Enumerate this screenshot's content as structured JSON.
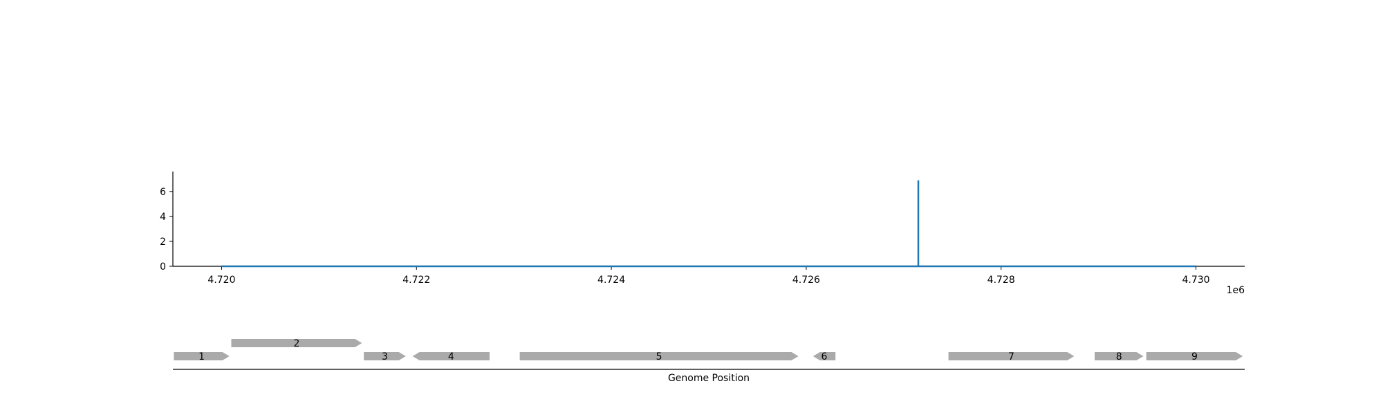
{
  "chart_data": [
    {
      "type": "line",
      "xlabel": "",
      "ylabel": "",
      "x_offset_label": "1e6",
      "xlim": [
        4719500,
        4730500
      ],
      "ylim": [
        0,
        7.6
      ],
      "x_ticks": [
        4720000,
        4722000,
        4724000,
        4726000,
        4728000,
        4730000
      ],
      "x_tick_labels": [
        "4.720",
        "4.722",
        "4.724",
        "4.726",
        "4.728",
        "4.730"
      ],
      "y_ticks": [
        0,
        2,
        4,
        6
      ],
      "y_tick_labels": [
        "0",
        "2",
        "4",
        "6"
      ],
      "grid": false,
      "color": "#1f77b4",
      "series": [
        {
          "x": [
            4720000,
            4727150,
            4727150,
            4727150,
            4727150,
            4730000
          ],
          "y": [
            0,
            0,
            6.9,
            6.9,
            0,
            0
          ]
        }
      ]
    },
    {
      "type": "gene-track",
      "xlabel": "Genome Position",
      "xlim": [
        4719500,
        4730500
      ],
      "color": "#aaaaaa",
      "genes": [
        {
          "label": "1",
          "start": 4719510,
          "end": 4720080,
          "strand": "+",
          "row": 0
        },
        {
          "label": "2",
          "start": 4720100,
          "end": 4721440,
          "strand": "+",
          "row": 1
        },
        {
          "label": "3",
          "start": 4721460,
          "end": 4721890,
          "strand": "+",
          "row": 0
        },
        {
          "label": "4",
          "start": 4721960,
          "end": 4722750,
          "strand": "-",
          "row": 0
        },
        {
          "label": "5",
          "start": 4723060,
          "end": 4725920,
          "strand": "+",
          "row": 0
        },
        {
          "label": "6",
          "start": 4726070,
          "end": 4726300,
          "strand": "-",
          "row": 0
        },
        {
          "label": "7",
          "start": 4727460,
          "end": 4728750,
          "strand": "+",
          "row": 0
        },
        {
          "label": "8",
          "start": 4728960,
          "end": 4729460,
          "strand": "+",
          "row": 0
        },
        {
          "label": "9",
          "start": 4729490,
          "end": 4730480,
          "strand": "+",
          "row": 0
        }
      ]
    }
  ]
}
